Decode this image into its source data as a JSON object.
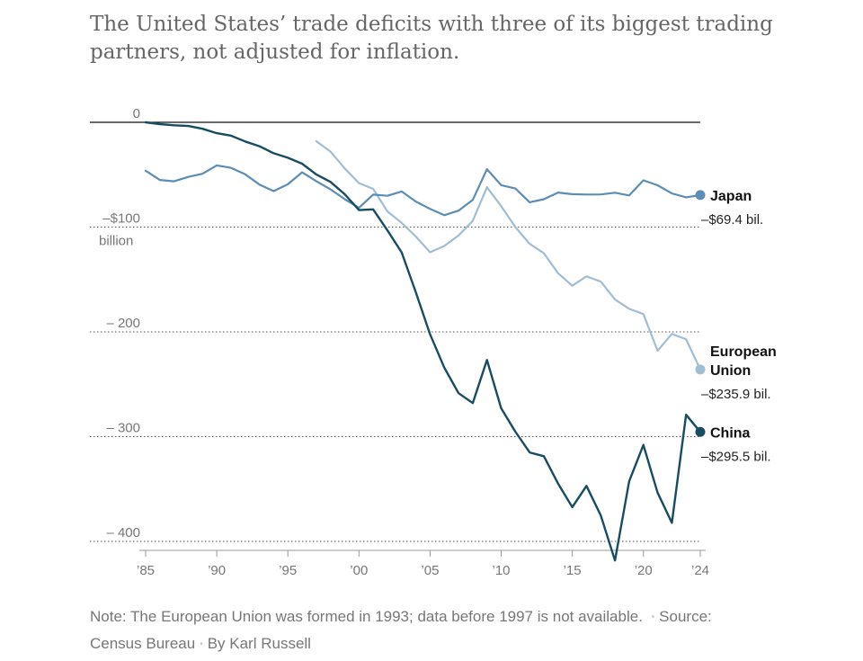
{
  "subtitle": "The United States’ trade deficits with three of its biggest trading partners, not adjusted for inflation.",
  "note": {
    "text": "Note: The European Union was formed in 1993; data before 1997 is not available.",
    "source": "Source: Census Bureau",
    "byline": "By Karl Russell",
    "separator": "•"
  },
  "chart_data": {
    "type": "line",
    "title": "",
    "xlabel": "",
    "ylabel": "",
    "xlim": [
      1985,
      2024
    ],
    "ylim": [
      -420,
      0
    ],
    "x_ticks": [
      {
        "value": 1985,
        "label": "’85"
      },
      {
        "value": 1990,
        "label": "’90"
      },
      {
        "value": 1995,
        "label": "’95"
      },
      {
        "value": 2000,
        "label": "’00"
      },
      {
        "value": 2005,
        "label": "’05"
      },
      {
        "value": 2010,
        "label": "’10"
      },
      {
        "value": 2015,
        "label": "’15"
      },
      {
        "value": 2020,
        "label": "’20"
      },
      {
        "value": 2024,
        "label": "’24"
      }
    ],
    "y_ticks": [
      {
        "value": 0,
        "label": "0",
        "sublabel": ""
      },
      {
        "value": -100,
        "label": "–$100",
        "sublabel": "billion"
      },
      {
        "value": -200,
        "label": "– 200",
        "sublabel": ""
      },
      {
        "value": -300,
        "label": "– 300",
        "sublabel": ""
      },
      {
        "value": -400,
        "label": "– 400",
        "sublabel": ""
      }
    ],
    "series": [
      {
        "name": "Japan",
        "value_label": "–$69.4 bil.",
        "color": "#5b8db5",
        "x": [
          1985,
          1986,
          1987,
          1988,
          1989,
          1990,
          1991,
          1992,
          1993,
          1994,
          1995,
          1996,
          1997,
          1998,
          1999,
          2000,
          2001,
          2002,
          2003,
          2004,
          2005,
          2006,
          2007,
          2008,
          2009,
          2010,
          2011,
          2012,
          2013,
          2014,
          2015,
          2016,
          2017,
          2018,
          2019,
          2020,
          2021,
          2022,
          2023,
          2024
        ],
        "values": [
          -46.2,
          -55.0,
          -56.3,
          -52.1,
          -49.1,
          -41.1,
          -43.4,
          -49.6,
          -59.4,
          -65.7,
          -59.1,
          -47.7,
          -56.1,
          -64.0,
          -73.4,
          -81.6,
          -69.0,
          -70.1,
          -66.0,
          -75.6,
          -82.7,
          -88.7,
          -84.3,
          -74.1,
          -44.7,
          -60.0,
          -63.2,
          -76.3,
          -73.4,
          -67.0,
          -68.6,
          -68.9,
          -68.8,
          -67.2,
          -69.8,
          -55.4,
          -60.1,
          -67.9,
          -71.6,
          -69.4
        ]
      },
      {
        "name": "European Union",
        "value_label": "–$235.9 bil.",
        "color": "#9fbdd4",
        "x": [
          1997,
          1998,
          1999,
          2000,
          2001,
          2002,
          2003,
          2004,
          2005,
          2006,
          2007,
          2008,
          2009,
          2010,
          2011,
          2012,
          2013,
          2014,
          2015,
          2016,
          2017,
          2018,
          2019,
          2020,
          2021,
          2022,
          2023,
          2024
        ],
        "values": [
          -18.0,
          -28.0,
          -44.0,
          -58.0,
          -63.5,
          -85.0,
          -96.0,
          -109.0,
          -124.0,
          -118.0,
          -108.0,
          -94.0,
          -62.0,
          -80.0,
          -100.0,
          -116.0,
          -125.0,
          -144.0,
          -156.0,
          -147.0,
          -152.0,
          -169.0,
          -178.0,
          -183.0,
          -218.0,
          -202.0,
          -207.0,
          -235.9
        ]
      },
      {
        "name": "China",
        "value_label": "–$295.5 bil.",
        "color": "#164d63",
        "x": [
          1985,
          1986,
          1987,
          1988,
          1989,
          1990,
          1991,
          1992,
          1993,
          1994,
          1995,
          1996,
          1997,
          1998,
          1999,
          2000,
          2001,
          2002,
          2003,
          2004,
          2005,
          2006,
          2007,
          2008,
          2009,
          2010,
          2011,
          2012,
          2013,
          2014,
          2015,
          2016,
          2017,
          2018,
          2019,
          2020,
          2021,
          2022,
          2023,
          2024
        ],
        "values": [
          0.0,
          -1.7,
          -2.8,
          -3.5,
          -6.2,
          -10.4,
          -12.7,
          -18.3,
          -22.8,
          -29.5,
          -33.8,
          -39.5,
          -49.7,
          -56.9,
          -68.7,
          -83.8,
          -83.1,
          -103.1,
          -124.1,
          -162.3,
          -202.3,
          -234.1,
          -258.5,
          -268.0,
          -226.9,
          -273.0,
          -295.3,
          -315.1,
          -318.7,
          -344.8,
          -367.3,
          -347.0,
          -375.2,
          -418.2,
          -342.6,
          -308.0,
          -353.5,
          -382.3,
          -279.1,
          -295.5
        ]
      }
    ]
  }
}
